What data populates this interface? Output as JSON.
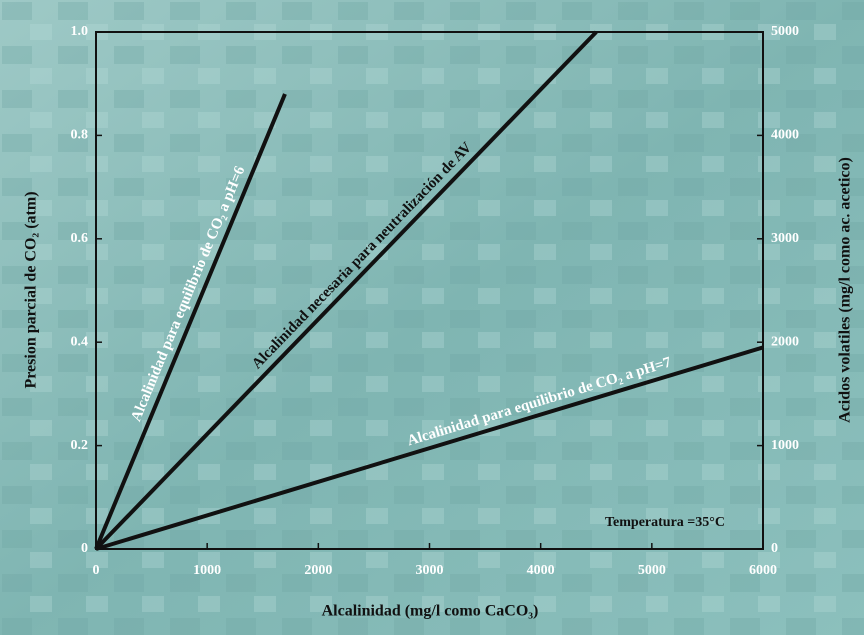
{
  "chart_data": {
    "type": "line",
    "xlabel": "Alcalinidad (mg/l como CaCO₃)",
    "ylabel": "Presion parcial de CO₂ (atm)",
    "y2label": "Acidos volatiles (mg/l como ac. acetico)",
    "annotation": "Temperatura =35°C",
    "xlim": [
      0,
      6000
    ],
    "xticks": [
      0,
      1000,
      2000,
      3000,
      4000,
      5000,
      6000
    ],
    "ylim": [
      0,
      1
    ],
    "yticks": [
      0,
      0.2,
      0.4,
      0.6,
      0.8,
      {
        "value": 1,
        "label": "1.0"
      }
    ],
    "y2lim": [
      0,
      5000
    ],
    "y2ticks": [
      0,
      1000,
      2000,
      3000,
      4000,
      5000
    ],
    "series": [
      {
        "name": "Alcalinidad para equilibrio de CO₂ a pH=6",
        "color": "#111111",
        "x": [
          0,
          1700
        ],
        "values": [
          0,
          0.88
        ]
      },
      {
        "name": "Alcalinidad necesaria para neutralización de AV",
        "color": "#111111",
        "axis": "y2",
        "x": [
          0,
          4500
        ],
        "values": [
          0,
          5000
        ]
      },
      {
        "name": "Alcalinidad para equilibrio de CO₂ a pH=7",
        "color": "#111111",
        "x": [
          0,
          6000
        ],
        "values": [
          0,
          0.39
        ]
      }
    ]
  }
}
